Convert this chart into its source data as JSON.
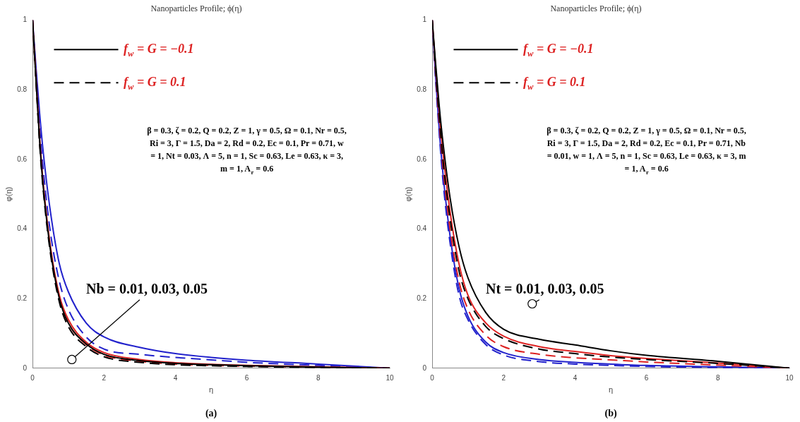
{
  "chart_data": [
    {
      "type": "line",
      "title": "Nanoparticles Profile; ϕ(η)",
      "xlabel": "η",
      "ylabel": "φ(η)",
      "x": [
        0,
        0.1,
        0.2,
        0.3,
        0.5,
        0.75,
        1,
        1.5,
        2,
        3,
        4,
        5,
        6,
        8,
        10
      ],
      "xlim": [
        0,
        10
      ],
      "xticks": [
        0,
        2,
        4,
        6,
        8,
        10
      ],
      "ylim": [
        0,
        1
      ],
      "yticks": [
        0,
        0.2,
        0.4,
        0.6,
        0.8,
        1
      ],
      "grid": false,
      "legend": false,
      "marker": "none",
      "series": [
        {
          "color": "#000000",
          "line_style": "solid",
          "values": [
            1,
            0.82,
            0.65,
            0.52,
            0.34,
            0.2,
            0.13,
            0.07,
            0.04,
            0.022,
            0.014,
            0.01,
            0.007,
            0.003,
            0
          ]
        },
        {
          "color": "#000000",
          "line_style": "dashed",
          "values": [
            1,
            0.82,
            0.64,
            0.51,
            0.33,
            0.19,
            0.12,
            0.062,
            0.033,
            0.017,
            0.01,
            0.007,
            0.005,
            0.002,
            0
          ]
        },
        {
          "color": "#dd2222",
          "line_style": "solid",
          "values": [
            1,
            0.83,
            0.66,
            0.53,
            0.35,
            0.21,
            0.14,
            0.075,
            0.045,
            0.025,
            0.016,
            0.011,
            0.008,
            0.004,
            0
          ]
        },
        {
          "color": "#dd2222",
          "line_style": "dashed",
          "values": [
            1,
            0.82,
            0.65,
            0.52,
            0.34,
            0.2,
            0.13,
            0.068,
            0.038,
            0.02,
            0.012,
            0.008,
            0.006,
            0.003,
            0
          ]
        },
        {
          "color": "#2222cc",
          "line_style": "solid",
          "values": [
            1,
            0.86,
            0.73,
            0.62,
            0.45,
            0.3,
            0.22,
            0.13,
            0.09,
            0.06,
            0.042,
            0.031,
            0.023,
            0.012,
            0
          ]
        },
        {
          "color": "#2222cc",
          "line_style": "dashed",
          "values": [
            1,
            0.84,
            0.69,
            0.57,
            0.39,
            0.25,
            0.17,
            0.09,
            0.055,
            0.04,
            0.031,
            0.024,
            0.017,
            0.008,
            0
          ]
        }
      ],
      "annotations": [
        "f$_{w}$ = G = −0.1",
        "f$_{w}$ = G = 0.1",
        "β = 0.3, ζ = 0.2, Q = 0.2, Z = 1, γ = 0.5, Ω = 0.1, Nr = 0.5, Ri = 3, Γ = 1.5, Da = 2, Rd = 0.2, Ec = 0.1, Pr = 0.71, w = 1, Nt = 0.03, Λ = 5, n = 1, Sc = 0.63, Le = 0.63, κ = 3, m = 1, A$_{r}$ = 0.6",
        {
          "text": "Nb = 0.01, 0.03, 0.05",
          "x": 1.1,
          "y": 0.025
        },
        "(a)"
      ]
    },
    {
      "type": "line",
      "title": "Nanoparticles Profile; ϕ(η)",
      "xlabel": "η",
      "ylabel": "φ(η)",
      "x": [
        0,
        0.1,
        0.2,
        0.3,
        0.5,
        0.75,
        1,
        1.5,
        2,
        3,
        4,
        5,
        6,
        8,
        10
      ],
      "xlim": [
        0,
        10
      ],
      "xticks": [
        0,
        2,
        4,
        6,
        8,
        10
      ],
      "ylim": [
        0,
        1
      ],
      "yticks": [
        0,
        0.2,
        0.4,
        0.6,
        0.8,
        1
      ],
      "grid": false,
      "legend": false,
      "marker": "none",
      "series": [
        {
          "color": "#000000",
          "line_style": "solid",
          "values": [
            1,
            0.87,
            0.75,
            0.65,
            0.49,
            0.35,
            0.26,
            0.16,
            0.112,
            0.083,
            0.067,
            0.05,
            0.037,
            0.02,
            0
          ]
        },
        {
          "color": "#000000",
          "line_style": "dashed",
          "values": [
            1,
            0.85,
            0.72,
            0.6,
            0.43,
            0.28,
            0.2,
            0.12,
            0.085,
            0.055,
            0.042,
            0.032,
            0.025,
            0.014,
            0
          ]
        },
        {
          "color": "#dd2222",
          "line_style": "solid",
          "values": [
            1,
            0.86,
            0.73,
            0.62,
            0.45,
            0.3,
            0.21,
            0.13,
            0.092,
            0.062,
            0.048,
            0.036,
            0.028,
            0.015,
            0
          ]
        },
        {
          "color": "#dd2222",
          "line_style": "dashed",
          "values": [
            1,
            0.84,
            0.7,
            0.58,
            0.4,
            0.25,
            0.17,
            0.095,
            0.062,
            0.04,
            0.03,
            0.024,
            0.018,
            0.009,
            0
          ]
        },
        {
          "color": "#2222cc",
          "line_style": "solid",
          "values": [
            1,
            0.83,
            0.68,
            0.56,
            0.38,
            0.23,
            0.15,
            0.075,
            0.045,
            0.025,
            0.017,
            0.012,
            0.008,
            0.004,
            0
          ]
        },
        {
          "color": "#2222cc",
          "line_style": "dashed",
          "values": [
            1,
            0.82,
            0.67,
            0.54,
            0.36,
            0.21,
            0.14,
            0.068,
            0.038,
            0.019,
            0.012,
            0.008,
            0.005,
            0.002,
            0
          ]
        }
      ],
      "annotations": [
        "f$_{w}$ = G = −0.1",
        "f$_{w}$ = G = 0.1",
        "β = 0.3, ζ = 0.2, Q = 0.2, Z = 1, γ = 0.5, Ω = 0.1, Nr = 0.5, Ri = 3, Γ = 1.5, Da = 2, Rd = 0.2, Ec = 0.1, Pr = 0.71, Nb = 0.01, w = 1, Λ = 5, n = 1, Sc = 0.63, Le = 0.63, κ = 3, m = 1, A$_{r}$ = 0.6",
        {
          "text": "Nt = 0.01, 0.03, 0.05",
          "x": 2.8,
          "y": 0.185
        },
        "(b)"
      ]
    }
  ]
}
